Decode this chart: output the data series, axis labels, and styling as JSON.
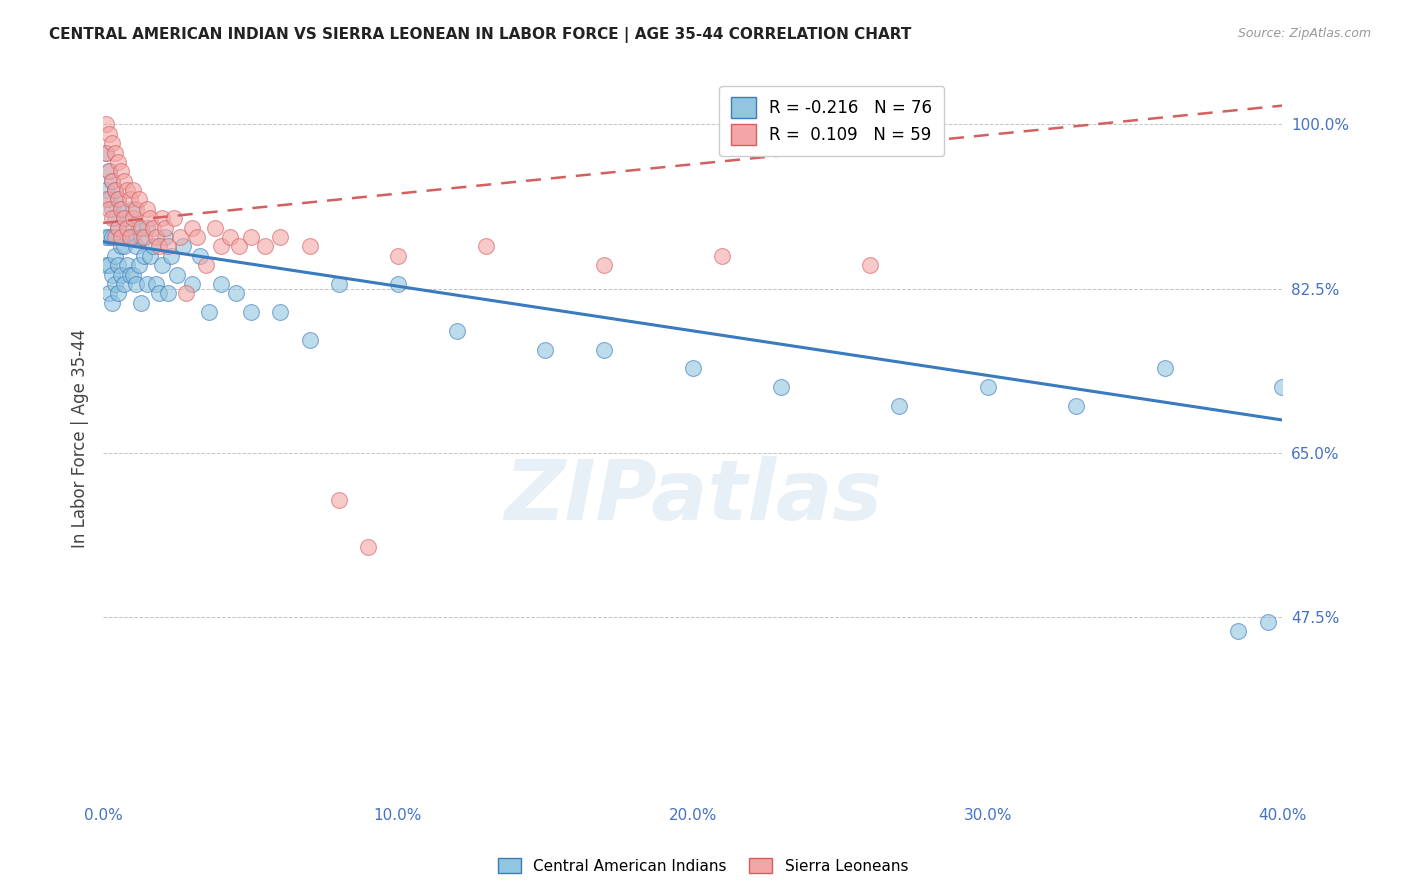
{
  "title": "CENTRAL AMERICAN INDIAN VS SIERRA LEONEAN IN LABOR FORCE | AGE 35-44 CORRELATION CHART",
  "source": "Source: ZipAtlas.com",
  "ylabel": "In Labor Force | Age 35-44",
  "xlim": [
    0.0,
    0.4
  ],
  "ylim": [
    0.28,
    1.05
  ],
  "yticks": [
    0.475,
    0.65,
    0.825,
    1.0
  ],
  "ytick_labels": [
    "47.5%",
    "65.0%",
    "82.5%",
    "100.0%"
  ],
  "xticks": [
    0.0,
    0.1,
    0.2,
    0.3,
    0.4
  ],
  "xtick_labels": [
    "0.0%",
    "10.0%",
    "20.0%",
    "30.0%",
    "40.0%"
  ],
  "blue_R": -0.216,
  "blue_N": 76,
  "pink_R": 0.109,
  "pink_N": 59,
  "blue_color": "#92c5de",
  "pink_color": "#f4a6a6",
  "blue_line_color": "#3a7abf",
  "pink_line_color": "#d45f5f",
  "legend_label_blue": "Central American Indians",
  "legend_label_pink": "Sierra Leoneans",
  "watermark": "ZIPatlas",
  "blue_line_x0": 0.0,
  "blue_line_y0": 0.875,
  "blue_line_x1": 0.4,
  "blue_line_y1": 0.685,
  "pink_line_x0": 0.0,
  "pink_line_y0": 0.895,
  "pink_line_x1": 0.4,
  "pink_line_y1": 1.02,
  "blue_x": [
    0.001,
    0.001,
    0.001,
    0.001,
    0.002,
    0.002,
    0.002,
    0.002,
    0.002,
    0.003,
    0.003,
    0.003,
    0.003,
    0.003,
    0.004,
    0.004,
    0.004,
    0.004,
    0.005,
    0.005,
    0.005,
    0.005,
    0.006,
    0.006,
    0.006,
    0.007,
    0.007,
    0.007,
    0.008,
    0.008,
    0.009,
    0.009,
    0.01,
    0.01,
    0.01,
    0.011,
    0.011,
    0.012,
    0.012,
    0.013,
    0.013,
    0.014,
    0.015,
    0.015,
    0.016,
    0.017,
    0.018,
    0.019,
    0.02,
    0.021,
    0.022,
    0.023,
    0.025,
    0.027,
    0.03,
    0.033,
    0.036,
    0.04,
    0.045,
    0.05,
    0.06,
    0.07,
    0.08,
    0.1,
    0.12,
    0.15,
    0.17,
    0.2,
    0.23,
    0.27,
    0.3,
    0.33,
    0.36,
    0.385,
    0.395,
    0.4
  ],
  "blue_y": [
    0.97,
    0.93,
    0.88,
    0.85,
    0.95,
    0.92,
    0.88,
    0.85,
    0.82,
    0.94,
    0.91,
    0.88,
    0.84,
    0.81,
    0.93,
    0.9,
    0.86,
    0.83,
    0.92,
    0.89,
    0.85,
    0.82,
    0.91,
    0.87,
    0.84,
    0.9,
    0.87,
    0.83,
    0.89,
    0.85,
    0.88,
    0.84,
    0.91,
    0.88,
    0.84,
    0.87,
    0.83,
    0.89,
    0.85,
    0.88,
    0.81,
    0.86,
    0.89,
    0.83,
    0.86,
    0.87,
    0.83,
    0.82,
    0.85,
    0.88,
    0.82,
    0.86,
    0.84,
    0.87,
    0.83,
    0.86,
    0.8,
    0.83,
    0.82,
    0.8,
    0.8,
    0.77,
    0.83,
    0.83,
    0.78,
    0.76,
    0.76,
    0.74,
    0.72,
    0.7,
    0.72,
    0.7,
    0.74,
    0.46,
    0.47,
    0.72
  ],
  "pink_x": [
    0.001,
    0.001,
    0.001,
    0.002,
    0.002,
    0.002,
    0.003,
    0.003,
    0.003,
    0.004,
    0.004,
    0.004,
    0.005,
    0.005,
    0.005,
    0.006,
    0.006,
    0.006,
    0.007,
    0.007,
    0.008,
    0.008,
    0.009,
    0.009,
    0.01,
    0.01,
    0.011,
    0.012,
    0.013,
    0.014,
    0.015,
    0.016,
    0.017,
    0.018,
    0.019,
    0.02,
    0.021,
    0.022,
    0.024,
    0.026,
    0.028,
    0.03,
    0.032,
    0.035,
    0.038,
    0.04,
    0.043,
    0.046,
    0.05,
    0.055,
    0.06,
    0.07,
    0.08,
    0.09,
    0.1,
    0.13,
    0.17,
    0.21,
    0.26
  ],
  "pink_y": [
    1.0,
    0.97,
    0.92,
    0.99,
    0.95,
    0.91,
    0.98,
    0.94,
    0.9,
    0.97,
    0.93,
    0.88,
    0.96,
    0.92,
    0.89,
    0.95,
    0.91,
    0.88,
    0.94,
    0.9,
    0.93,
    0.89,
    0.92,
    0.88,
    0.93,
    0.9,
    0.91,
    0.92,
    0.89,
    0.88,
    0.91,
    0.9,
    0.89,
    0.88,
    0.87,
    0.9,
    0.89,
    0.87,
    0.9,
    0.88,
    0.82,
    0.89,
    0.88,
    0.85,
    0.89,
    0.87,
    0.88,
    0.87,
    0.88,
    0.87,
    0.88,
    0.87,
    0.6,
    0.55,
    0.86,
    0.87,
    0.85,
    0.86,
    0.85
  ]
}
